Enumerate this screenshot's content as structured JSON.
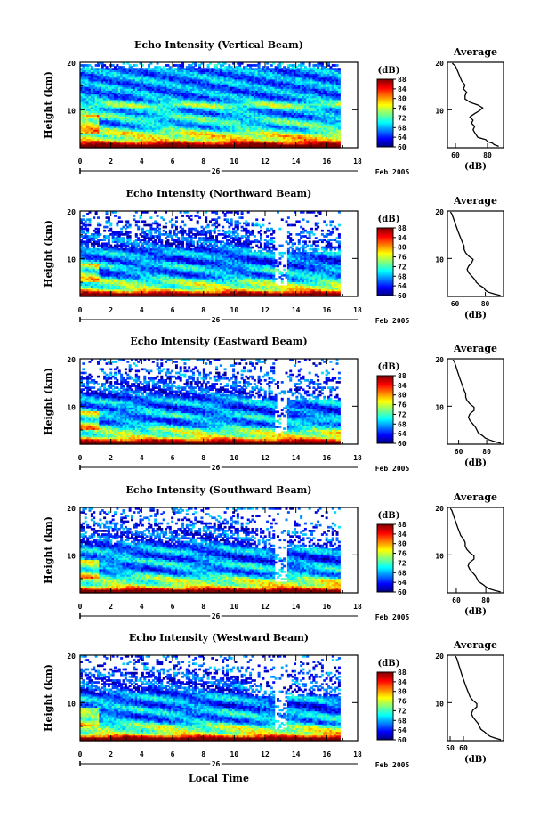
{
  "chart_data": [
    {
      "type": "heatmap",
      "title": "Echo Intensity (Vertical Beam)",
      "ylabel": "Height (km)",
      "xlim": [
        0,
        18
      ],
      "ylim": [
        2,
        20
      ],
      "x_ticks": [
        "0",
        "2",
        "4",
        "6",
        "8",
        "10",
        "12",
        "14",
        "16",
        "18"
      ],
      "y_ticks": [
        "10",
        "20"
      ],
      "date_day": "26",
      "date_tail": "Feb 2005",
      "colorbar": {
        "unit": "(dB)",
        "ticks": [
          "88",
          "84",
          "80",
          "76",
          "72",
          "68",
          "64",
          "60"
        ],
        "range": [
          60,
          88
        ]
      },
      "average": {
        "title": "Average",
        "xlabel": "(dB)",
        "xticks": [
          "60",
          "80"
        ],
        "xlim": [
          55,
          90
        ],
        "profile": [
          [
            87,
            2.3
          ],
          [
            84,
            2.7
          ],
          [
            83,
            3.0
          ],
          [
            80,
            3.3
          ],
          [
            79,
            3.7
          ],
          [
            74,
            4.2
          ],
          [
            73,
            4.7
          ],
          [
            72,
            5.2
          ],
          [
            71,
            5.8
          ],
          [
            72,
            6.5
          ],
          [
            70,
            7.2
          ],
          [
            71,
            7.8
          ],
          [
            69,
            8.5
          ],
          [
            72,
            9.2
          ],
          [
            75,
            9.8
          ],
          [
            77,
            10.4
          ],
          [
            74,
            11.0
          ],
          [
            69,
            11.6
          ],
          [
            66,
            12.3
          ],
          [
            66,
            13.0
          ],
          [
            67,
            13.7
          ],
          [
            65,
            14.4
          ],
          [
            66,
            15.2
          ],
          [
            64,
            16.0
          ],
          [
            63,
            16.8
          ],
          [
            62,
            17.6
          ],
          [
            61,
            18.4
          ],
          [
            60,
            19.2
          ],
          [
            58,
            19.8
          ]
        ]
      }
    },
    {
      "type": "heatmap",
      "title": "Echo Intensity (Northward Beam)",
      "ylabel": "Height (km)",
      "xlim": [
        0,
        18
      ],
      "ylim": [
        2,
        20
      ],
      "x_ticks": [
        "0",
        "2",
        "4",
        "6",
        "8",
        "10",
        "12",
        "14",
        "16",
        "18"
      ],
      "y_ticks": [
        "10",
        "20"
      ],
      "date_day": "26",
      "date_tail": "Feb 2005",
      "colorbar": {
        "unit": "(dB)",
        "ticks": [
          "88",
          "84",
          "80",
          "76",
          "72",
          "68",
          "64",
          "60"
        ],
        "range": [
          60,
          88
        ]
      },
      "average": {
        "title": "Average",
        "xlabel": "(dB)",
        "xticks": [
          "60",
          "80"
        ],
        "xlim": [
          55,
          92
        ],
        "profile": [
          [
            90,
            2.2
          ],
          [
            86,
            2.5
          ],
          [
            82,
            2.9
          ],
          [
            80,
            3.3
          ],
          [
            79,
            3.8
          ],
          [
            76,
            4.4
          ],
          [
            74,
            5.0
          ],
          [
            73,
            5.6
          ],
          [
            71,
            6.3
          ],
          [
            69,
            7.0
          ],
          [
            68,
            7.7
          ],
          [
            69,
            8.4
          ],
          [
            71,
            9.1
          ],
          [
            72,
            9.8
          ],
          [
            69,
            10.5
          ],
          [
            67,
            11.2
          ],
          [
            66,
            11.9
          ],
          [
            66,
            12.6
          ],
          [
            65,
            13.3
          ],
          [
            64,
            14.1
          ],
          [
            63,
            14.9
          ],
          [
            62,
            15.7
          ],
          [
            61,
            16.6
          ],
          [
            60,
            17.5
          ],
          [
            59,
            18.4
          ],
          [
            58,
            19.3
          ],
          [
            57,
            19.8
          ]
        ]
      }
    },
    {
      "type": "heatmap",
      "title": "Echo Intensity (Eastward Beam)",
      "ylabel": "Height (km)",
      "xlim": [
        0,
        18
      ],
      "ylim": [
        2,
        20
      ],
      "x_ticks": [
        "0",
        "2",
        "4",
        "6",
        "8",
        "10",
        "12",
        "14",
        "16",
        "18"
      ],
      "y_ticks": [
        "10",
        "20"
      ],
      "date_day": "26",
      "date_tail": "Feb 2005",
      "colorbar": {
        "unit": "(dB)",
        "ticks": [
          "88",
          "84",
          "80",
          "76",
          "72",
          "68",
          "64",
          "60"
        ],
        "range": [
          60,
          88
        ]
      },
      "average": {
        "title": "Average",
        "xlabel": "(dB)",
        "xticks": [
          "60",
          "80"
        ],
        "xlim": [
          52,
          92
        ],
        "profile": [
          [
            90,
            2.2
          ],
          [
            86,
            2.5
          ],
          [
            82,
            2.9
          ],
          [
            79,
            3.3
          ],
          [
            77,
            3.8
          ],
          [
            74,
            4.4
          ],
          [
            73,
            5.0
          ],
          [
            72,
            5.6
          ],
          [
            70,
            6.3
          ],
          [
            68,
            7.0
          ],
          [
            67,
            7.7
          ],
          [
            68,
            8.4
          ],
          [
            71,
            9.1
          ],
          [
            71,
            9.8
          ],
          [
            68,
            10.5
          ],
          [
            66,
            11.2
          ],
          [
            65,
            11.9
          ],
          [
            65,
            12.6
          ],
          [
            64,
            13.3
          ],
          [
            63,
            14.1
          ],
          [
            62,
            14.9
          ],
          [
            61,
            15.7
          ],
          [
            60,
            16.6
          ],
          [
            59,
            17.5
          ],
          [
            58,
            18.4
          ],
          [
            57,
            19.3
          ],
          [
            56,
            19.8
          ]
        ]
      }
    },
    {
      "type": "heatmap",
      "title": "Echo Intensity (Southward Beam)",
      "ylabel": "Height (km)",
      "xlim": [
        0,
        18
      ],
      "ylim": [
        2,
        20
      ],
      "x_ticks": [
        "0",
        "2",
        "4",
        "6",
        "8",
        "10",
        "12",
        "14",
        "16",
        "18"
      ],
      "y_ticks": [
        "10",
        "20"
      ],
      "date_day": "26",
      "date_tail": "Feb 2005",
      "colorbar": {
        "unit": "(dB)",
        "ticks": [
          "88",
          "84",
          "80",
          "76",
          "72",
          "68",
          "64",
          "60"
        ],
        "range": [
          60,
          88
        ]
      },
      "average": {
        "title": "Average",
        "xlabel": "(dB)",
        "xticks": [
          "60",
          "80"
        ],
        "xlim": [
          54,
          92
        ],
        "profile": [
          [
            90,
            2.2
          ],
          [
            86,
            2.5
          ],
          [
            82,
            2.9
          ],
          [
            80,
            3.3
          ],
          [
            78,
            3.8
          ],
          [
            75,
            4.4
          ],
          [
            74,
            5.0
          ],
          [
            73,
            5.6
          ],
          [
            71,
            6.3
          ],
          [
            69,
            7.0
          ],
          [
            68,
            7.7
          ],
          [
            69,
            8.4
          ],
          [
            72,
            9.1
          ],
          [
            72,
            9.8
          ],
          [
            69,
            10.5
          ],
          [
            67,
            11.2
          ],
          [
            66,
            11.9
          ],
          [
            66,
            12.6
          ],
          [
            65,
            13.3
          ],
          [
            63,
            14.1
          ],
          [
            62,
            14.9
          ],
          [
            61,
            15.7
          ],
          [
            60,
            16.6
          ],
          [
            59,
            17.5
          ],
          [
            58,
            18.4
          ],
          [
            57,
            19.3
          ],
          [
            56,
            19.8
          ]
        ]
      }
    },
    {
      "type": "heatmap",
      "title": "Echo Intensity (Westward Beam)",
      "ylabel": "Height (km)",
      "xlabel": "Local Time",
      "xlim": [
        0,
        18
      ],
      "ylim": [
        2,
        20
      ],
      "x_ticks": [
        "0",
        "2",
        "4",
        "6",
        "8",
        "10",
        "12",
        "14",
        "16",
        "18"
      ],
      "y_ticks": [
        "10",
        "20"
      ],
      "date_day": "26",
      "date_tail": "Feb 2005",
      "colorbar": {
        "unit": "(dB)",
        "ticks": [
          "88",
          "84",
          "80",
          "76",
          "72",
          "68",
          "64",
          "60"
        ],
        "range": [
          60,
          88
        ]
      },
      "average": {
        "title": "Average",
        "xlabel": "(dB)",
        "xticks": [
          "50",
          "60"
        ],
        "xlim": [
          48,
          90
        ],
        "profile": [
          [
            88,
            2.2
          ],
          [
            84,
            2.5
          ],
          [
            80,
            2.9
          ],
          [
            78,
            3.3
          ],
          [
            76,
            3.8
          ],
          [
            73,
            4.4
          ],
          [
            72,
            5.0
          ],
          [
            71,
            5.6
          ],
          [
            69,
            6.3
          ],
          [
            67,
            7.0
          ],
          [
            66,
            7.7
          ],
          [
            67,
            8.4
          ],
          [
            70,
            9.1
          ],
          [
            70,
            9.8
          ],
          [
            67,
            10.5
          ],
          [
            65,
            11.2
          ],
          [
            64,
            11.9
          ],
          [
            63,
            12.6
          ],
          [
            62,
            13.3
          ],
          [
            61,
            14.1
          ],
          [
            60,
            14.9
          ],
          [
            59,
            15.7
          ],
          [
            58,
            16.6
          ],
          [
            57,
            17.5
          ],
          [
            56,
            18.4
          ],
          [
            55,
            19.3
          ],
          [
            54,
            19.8
          ]
        ]
      }
    }
  ]
}
